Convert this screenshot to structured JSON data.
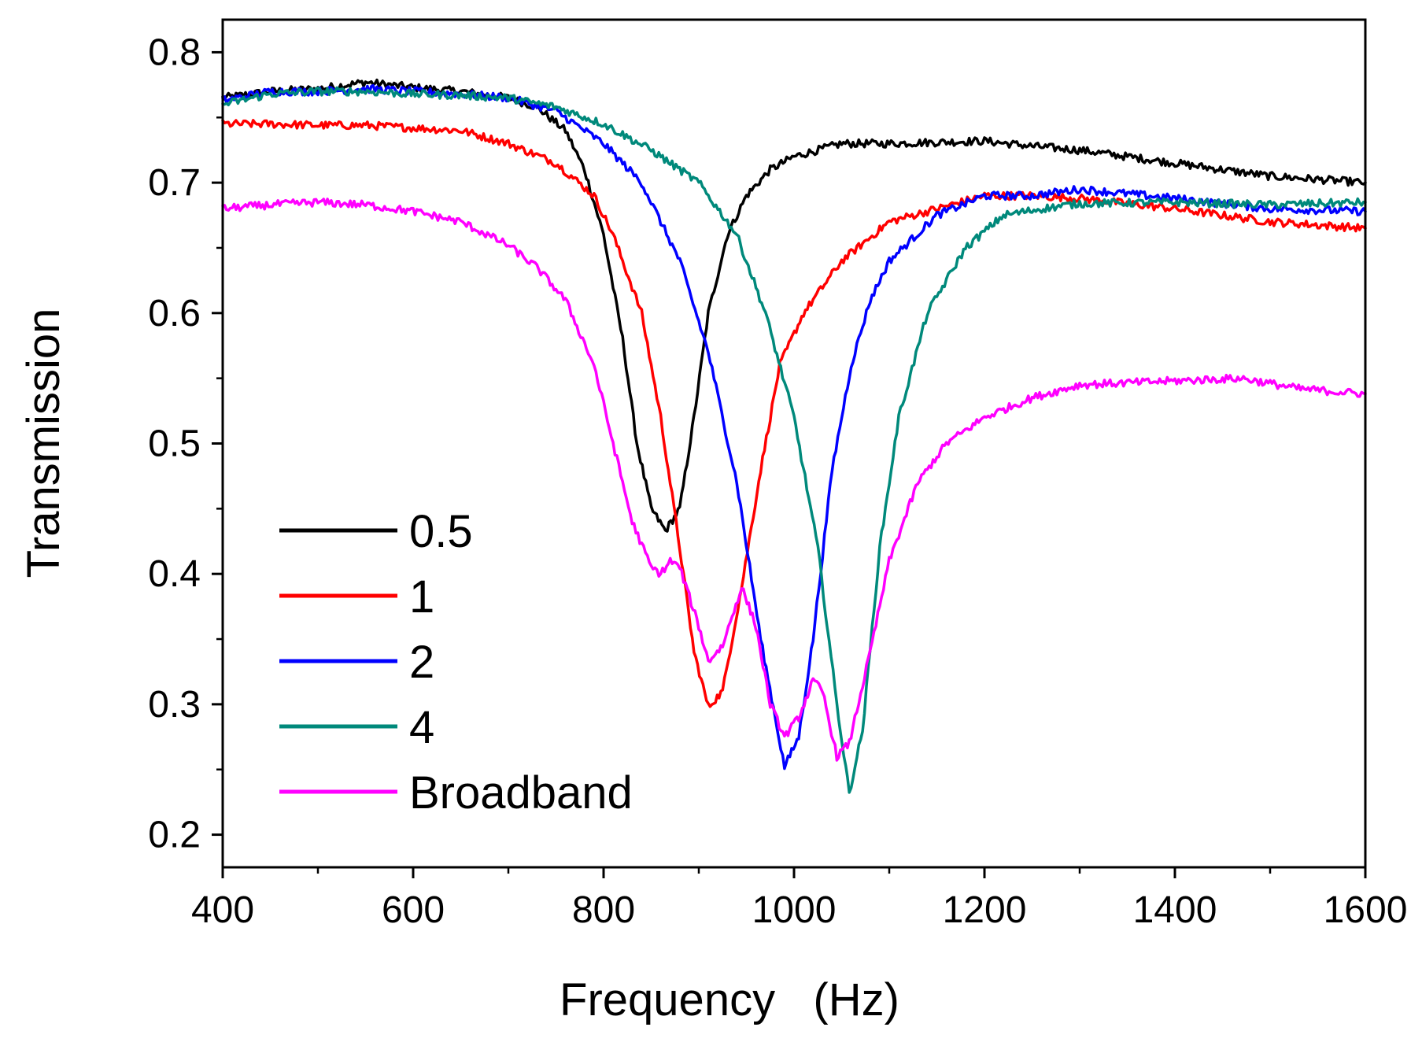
{
  "chart_data": {
    "type": "line",
    "title": "",
    "xlabel": "Frequency   (Hz)",
    "ylabel": "Transmission",
    "xlim": [
      400,
      1600
    ],
    "ylim": [
      0.175,
      0.825
    ],
    "x_ticks": [
      400,
      600,
      800,
      1000,
      1200,
      1400,
      1600
    ],
    "x_tick_labels": [
      "400",
      "600",
      "800",
      "1000",
      "1200",
      "1400",
      "1600"
    ],
    "y_ticks": [
      0.2,
      0.3,
      0.4,
      0.5,
      0.6,
      0.7,
      0.8
    ],
    "y_tick_labels": [
      "0.2",
      "0.3",
      "0.4",
      "0.5",
      "0.6",
      "0.7",
      "0.8"
    ],
    "grid": false,
    "legend_position": "bottom-left",
    "series": [
      {
        "name": "0.5",
        "color": "#000000",
        "points": [
          [
            400,
            0.765
          ],
          [
            450,
            0.77
          ],
          [
            500,
            0.772
          ],
          [
            550,
            0.777
          ],
          [
            600,
            0.773
          ],
          [
            650,
            0.77
          ],
          [
            700,
            0.765
          ],
          [
            730,
            0.758
          ],
          [
            760,
            0.74
          ],
          [
            780,
            0.71
          ],
          [
            800,
            0.66
          ],
          [
            820,
            0.58
          ],
          [
            835,
            0.5
          ],
          [
            850,
            0.45
          ],
          [
            865,
            0.433
          ],
          [
            880,
            0.45
          ],
          [
            895,
            0.52
          ],
          [
            910,
            0.6
          ],
          [
            930,
            0.66
          ],
          [
            950,
            0.69
          ],
          [
            975,
            0.71
          ],
          [
            1000,
            0.72
          ],
          [
            1050,
            0.73
          ],
          [
            1100,
            0.73
          ],
          [
            1200,
            0.732
          ],
          [
            1250,
            0.728
          ],
          [
            1300,
            0.725
          ],
          [
            1400,
            0.715
          ],
          [
            1500,
            0.705
          ],
          [
            1600,
            0.7
          ]
        ]
      },
      {
        "name": "1",
        "color": "#ff0000",
        "points": [
          [
            400,
            0.745
          ],
          [
            450,
            0.745
          ],
          [
            500,
            0.744
          ],
          [
            550,
            0.744
          ],
          [
            600,
            0.742
          ],
          [
            650,
            0.74
          ],
          [
            700,
            0.73
          ],
          [
            750,
            0.715
          ],
          [
            790,
            0.69
          ],
          [
            810,
            0.66
          ],
          [
            840,
            0.6
          ],
          [
            860,
            0.52
          ],
          [
            880,
            0.42
          ],
          [
            895,
            0.34
          ],
          [
            910,
            0.298
          ],
          [
            925,
            0.31
          ],
          [
            945,
            0.39
          ],
          [
            965,
            0.48
          ],
          [
            985,
            0.56
          ],
          [
            1010,
            0.6
          ],
          [
            1050,
            0.64
          ],
          [
            1100,
            0.67
          ],
          [
            1150,
            0.68
          ],
          [
            1200,
            0.69
          ],
          [
            1250,
            0.69
          ],
          [
            1300,
            0.688
          ],
          [
            1400,
            0.68
          ],
          [
            1500,
            0.67
          ],
          [
            1600,
            0.665
          ]
        ]
      },
      {
        "name": "2",
        "color": "#0000ff",
        "points": [
          [
            400,
            0.763
          ],
          [
            450,
            0.77
          ],
          [
            500,
            0.77
          ],
          [
            550,
            0.772
          ],
          [
            600,
            0.77
          ],
          [
            650,
            0.768
          ],
          [
            700,
            0.765
          ],
          [
            750,
            0.755
          ],
          [
            800,
            0.73
          ],
          [
            840,
            0.7
          ],
          [
            880,
            0.64
          ],
          [
            910,
            0.57
          ],
          [
            940,
            0.47
          ],
          [
            965,
            0.35
          ],
          [
            990,
            0.252
          ],
          [
            1005,
            0.275
          ],
          [
            1020,
            0.35
          ],
          [
            1040,
            0.48
          ],
          [
            1060,
            0.56
          ],
          [
            1080,
            0.61
          ],
          [
            1100,
            0.64
          ],
          [
            1150,
            0.675
          ],
          [
            1200,
            0.69
          ],
          [
            1250,
            0.69
          ],
          [
            1300,
            0.695
          ],
          [
            1400,
            0.688
          ],
          [
            1500,
            0.68
          ],
          [
            1600,
            0.678
          ]
        ]
      },
      {
        "name": "4",
        "color": "#00897b",
        "points": [
          [
            400,
            0.76
          ],
          [
            450,
            0.768
          ],
          [
            500,
            0.77
          ],
          [
            550,
            0.77
          ],
          [
            600,
            0.768
          ],
          [
            650,
            0.767
          ],
          [
            700,
            0.765
          ],
          [
            750,
            0.758
          ],
          [
            800,
            0.745
          ],
          [
            850,
            0.725
          ],
          [
            900,
            0.7
          ],
          [
            940,
            0.66
          ],
          [
            970,
            0.6
          ],
          [
            1000,
            0.52
          ],
          [
            1025,
            0.42
          ],
          [
            1045,
            0.3
          ],
          [
            1058,
            0.232
          ],
          [
            1072,
            0.28
          ],
          [
            1090,
            0.42
          ],
          [
            1110,
            0.52
          ],
          [
            1140,
            0.6
          ],
          [
            1180,
            0.65
          ],
          [
            1220,
            0.675
          ],
          [
            1260,
            0.68
          ],
          [
            1300,
            0.684
          ],
          [
            1400,
            0.685
          ],
          [
            1500,
            0.683
          ],
          [
            1600,
            0.685
          ]
        ]
      },
      {
        "name": "Broadband",
        "color": "#ff00ff",
        "points": [
          [
            400,
            0.68
          ],
          [
            450,
            0.683
          ],
          [
            500,
            0.685
          ],
          [
            550,
            0.683
          ],
          [
            600,
            0.678
          ],
          [
            650,
            0.67
          ],
          [
            700,
            0.652
          ],
          [
            730,
            0.635
          ],
          [
            760,
            0.61
          ],
          [
            790,
            0.56
          ],
          [
            810,
            0.5
          ],
          [
            830,
            0.44
          ],
          [
            850,
            0.405
          ],
          [
            860,
            0.4
          ],
          [
            870,
            0.41
          ],
          [
            880,
            0.405
          ],
          [
            900,
            0.36
          ],
          [
            910,
            0.333
          ],
          [
            925,
            0.345
          ],
          [
            945,
            0.39
          ],
          [
            960,
            0.36
          ],
          [
            975,
            0.3
          ],
          [
            990,
            0.275
          ],
          [
            1005,
            0.29
          ],
          [
            1020,
            0.318
          ],
          [
            1030,
            0.31
          ],
          [
            1045,
            0.26
          ],
          [
            1058,
            0.27
          ],
          [
            1080,
            0.34
          ],
          [
            1100,
            0.41
          ],
          [
            1130,
            0.47
          ],
          [
            1160,
            0.5
          ],
          [
            1200,
            0.52
          ],
          [
            1250,
            0.535
          ],
          [
            1300,
            0.545
          ],
          [
            1400,
            0.548
          ],
          [
            1470,
            0.55
          ],
          [
            1530,
            0.542
          ],
          [
            1600,
            0.538
          ]
        ]
      }
    ]
  }
}
